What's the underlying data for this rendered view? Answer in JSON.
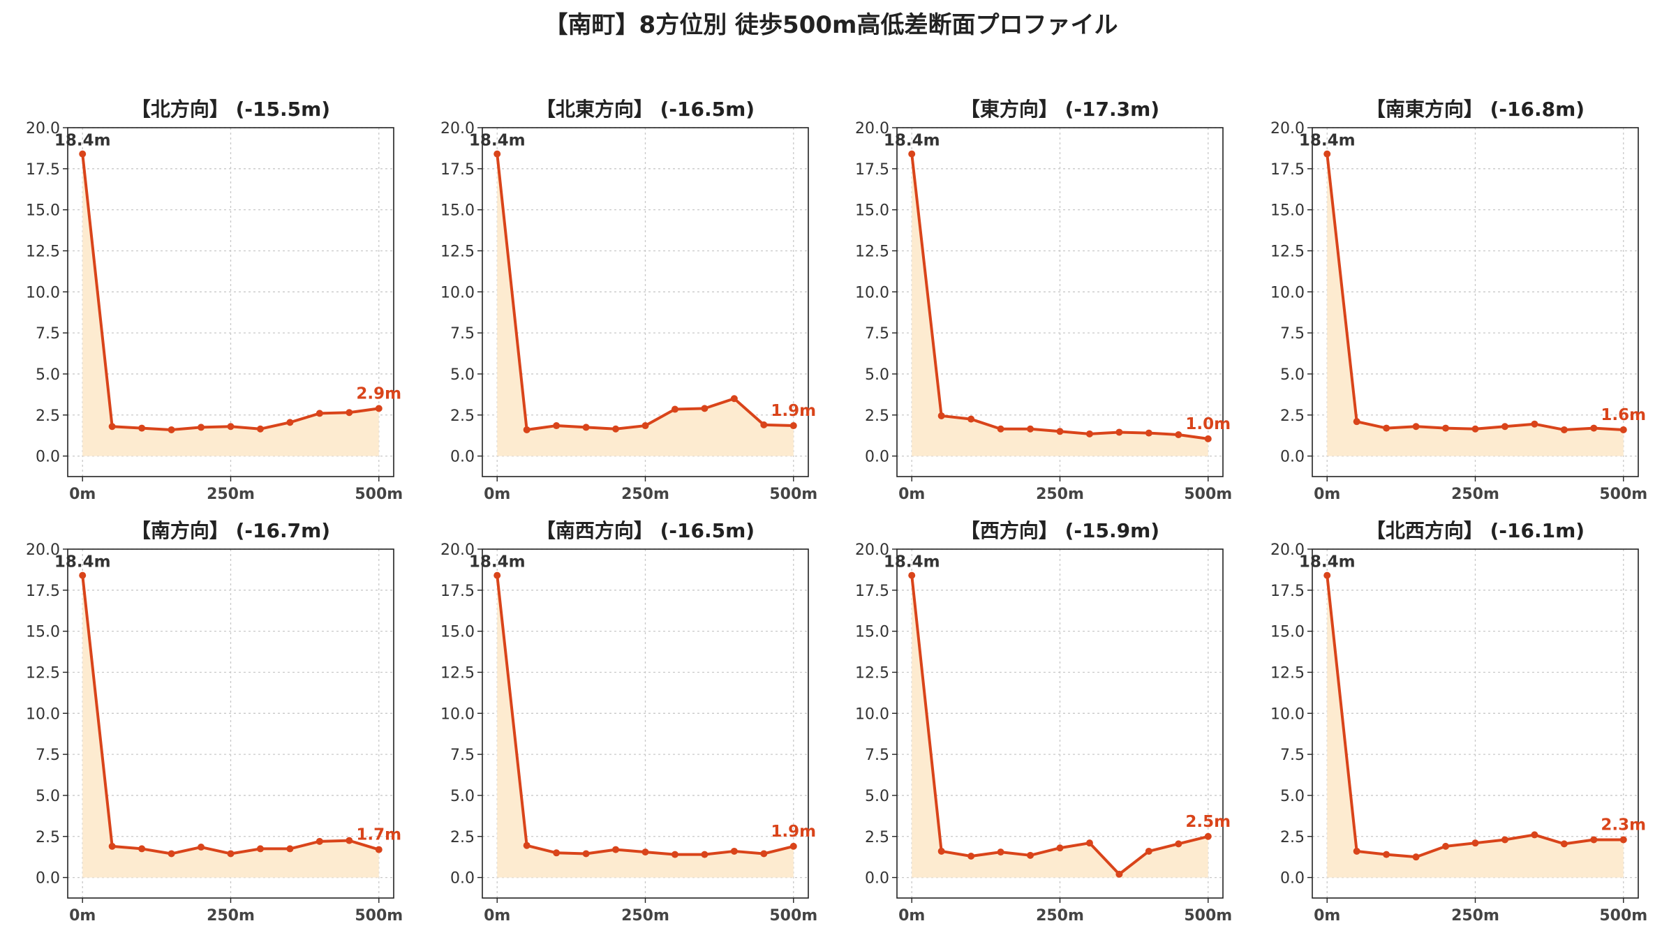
{
  "title": "【南町】8方位別 徒歩500m高低差断面プロファイル",
  "colors": {
    "line": "#d9441a",
    "fill": "#fdebd0",
    "grid": "#c8c8c8",
    "axis": "#222222",
    "start_label": "#333333"
  },
  "chart_data": [
    {
      "type": "area",
      "title": "【北方向】 (-15.5m)",
      "x": [
        0,
        50,
        100,
        150,
        200,
        250,
        300,
        350,
        400,
        450,
        500
      ],
      "y": [
        18.4,
        1.8,
        1.7,
        1.6,
        1.75,
        1.8,
        1.65,
        2.05,
        2.6,
        2.65,
        2.9
      ],
      "start_label": "18.4m",
      "end_label": "2.9m",
      "xticks": [
        "0m",
        "250m",
        "500m"
      ],
      "yticks": [
        "0.0",
        "2.5",
        "5.0",
        "7.5",
        "10.0",
        "12.5",
        "15.0",
        "17.5",
        "20.0"
      ],
      "xlim": [
        -25,
        525
      ],
      "ylim": [
        -1.25,
        20
      ],
      "grid": true
    },
    {
      "type": "area",
      "title": "【北東方向】 (-16.5m)",
      "x": [
        0,
        50,
        100,
        150,
        200,
        250,
        300,
        350,
        400,
        450,
        500
      ],
      "y": [
        18.4,
        1.6,
        1.85,
        1.75,
        1.65,
        1.85,
        2.85,
        2.9,
        3.5,
        1.9,
        1.85
      ],
      "start_label": "18.4m",
      "end_label": "1.9m",
      "xticks": [
        "0m",
        "250m",
        "500m"
      ],
      "yticks": [
        "0.0",
        "2.5",
        "5.0",
        "7.5",
        "10.0",
        "12.5",
        "15.0",
        "17.5",
        "20.0"
      ],
      "xlim": [
        -25,
        525
      ],
      "ylim": [
        -1.25,
        20
      ],
      "grid": true
    },
    {
      "type": "area",
      "title": "【東方向】 (-17.3m)",
      "x": [
        0,
        50,
        100,
        150,
        200,
        250,
        300,
        350,
        400,
        450,
        500
      ],
      "y": [
        18.4,
        2.45,
        2.25,
        1.65,
        1.65,
        1.5,
        1.35,
        1.45,
        1.4,
        1.3,
        1.05
      ],
      "start_label": "18.4m",
      "end_label": "1.0m",
      "xticks": [
        "0m",
        "250m",
        "500m"
      ],
      "yticks": [
        "0.0",
        "2.5",
        "5.0",
        "7.5",
        "10.0",
        "12.5",
        "15.0",
        "17.5",
        "20.0"
      ],
      "xlim": [
        -25,
        525
      ],
      "ylim": [
        -1.25,
        20
      ],
      "grid": true
    },
    {
      "type": "area",
      "title": "【南東方向】 (-16.8m)",
      "x": [
        0,
        50,
        100,
        150,
        200,
        250,
        300,
        350,
        400,
        450,
        500
      ],
      "y": [
        18.4,
        2.1,
        1.7,
        1.8,
        1.7,
        1.65,
        1.8,
        1.95,
        1.6,
        1.7,
        1.6
      ],
      "start_label": "18.4m",
      "end_label": "1.6m",
      "xticks": [
        "0m",
        "250m",
        "500m"
      ],
      "yticks": [
        "0.0",
        "2.5",
        "5.0",
        "7.5",
        "10.0",
        "12.5",
        "15.0",
        "17.5",
        "20.0"
      ],
      "xlim": [
        -25,
        525
      ],
      "ylim": [
        -1.25,
        20
      ],
      "grid": true
    },
    {
      "type": "area",
      "title": "【南方向】 (-16.7m)",
      "x": [
        0,
        50,
        100,
        150,
        200,
        250,
        300,
        350,
        400,
        450,
        500
      ],
      "y": [
        18.4,
        1.9,
        1.75,
        1.45,
        1.85,
        1.45,
        1.75,
        1.75,
        2.2,
        2.25,
        1.7
      ],
      "start_label": "18.4m",
      "end_label": "1.7m",
      "xticks": [
        "0m",
        "250m",
        "500m"
      ],
      "yticks": [
        "0.0",
        "2.5",
        "5.0",
        "7.5",
        "10.0",
        "12.5",
        "15.0",
        "17.5",
        "20.0"
      ],
      "xlim": [
        -25,
        525
      ],
      "ylim": [
        -1.25,
        20
      ],
      "grid": true
    },
    {
      "type": "area",
      "title": "【南西方向】 (-16.5m)",
      "x": [
        0,
        50,
        100,
        150,
        200,
        250,
        300,
        350,
        400,
        450,
        500
      ],
      "y": [
        18.4,
        1.95,
        1.5,
        1.45,
        1.7,
        1.55,
        1.4,
        1.4,
        1.6,
        1.45,
        1.9
      ],
      "start_label": "18.4m",
      "end_label": "1.9m",
      "xticks": [
        "0m",
        "250m",
        "500m"
      ],
      "yticks": [
        "0.0",
        "2.5",
        "5.0",
        "7.5",
        "10.0",
        "12.5",
        "15.0",
        "17.5",
        "20.0"
      ],
      "xlim": [
        -25,
        525
      ],
      "ylim": [
        -1.25,
        20
      ],
      "grid": true
    },
    {
      "type": "area",
      "title": "【西方向】 (-15.9m)",
      "x": [
        0,
        50,
        100,
        150,
        200,
        250,
        300,
        350,
        400,
        450,
        500
      ],
      "y": [
        18.4,
        1.6,
        1.3,
        1.55,
        1.35,
        1.8,
        2.1,
        0.2,
        1.6,
        2.05,
        2.5
      ],
      "start_label": "18.4m",
      "end_label": "2.5m",
      "xticks": [
        "0m",
        "250m",
        "500m"
      ],
      "yticks": [
        "0.0",
        "2.5",
        "5.0",
        "7.5",
        "10.0",
        "12.5",
        "15.0",
        "17.5",
        "20.0"
      ],
      "xlim": [
        -25,
        525
      ],
      "ylim": [
        -1.25,
        20
      ],
      "grid": true
    },
    {
      "type": "area",
      "title": "【北西方向】 (-16.1m)",
      "x": [
        0,
        50,
        100,
        150,
        200,
        250,
        300,
        350,
        400,
        450,
        500
      ],
      "y": [
        18.4,
        1.6,
        1.4,
        1.25,
        1.9,
        2.1,
        2.3,
        2.6,
        2.05,
        2.3,
        2.3
      ],
      "start_label": "18.4m",
      "end_label": "2.3m",
      "xticks": [
        "0m",
        "250m",
        "500m"
      ],
      "yticks": [
        "0.0",
        "2.5",
        "5.0",
        "7.5",
        "10.0",
        "12.5",
        "15.0",
        "17.5",
        "20.0"
      ],
      "xlim": [
        -25,
        525
      ],
      "ylim": [
        -1.25,
        20
      ],
      "grid": true
    }
  ]
}
